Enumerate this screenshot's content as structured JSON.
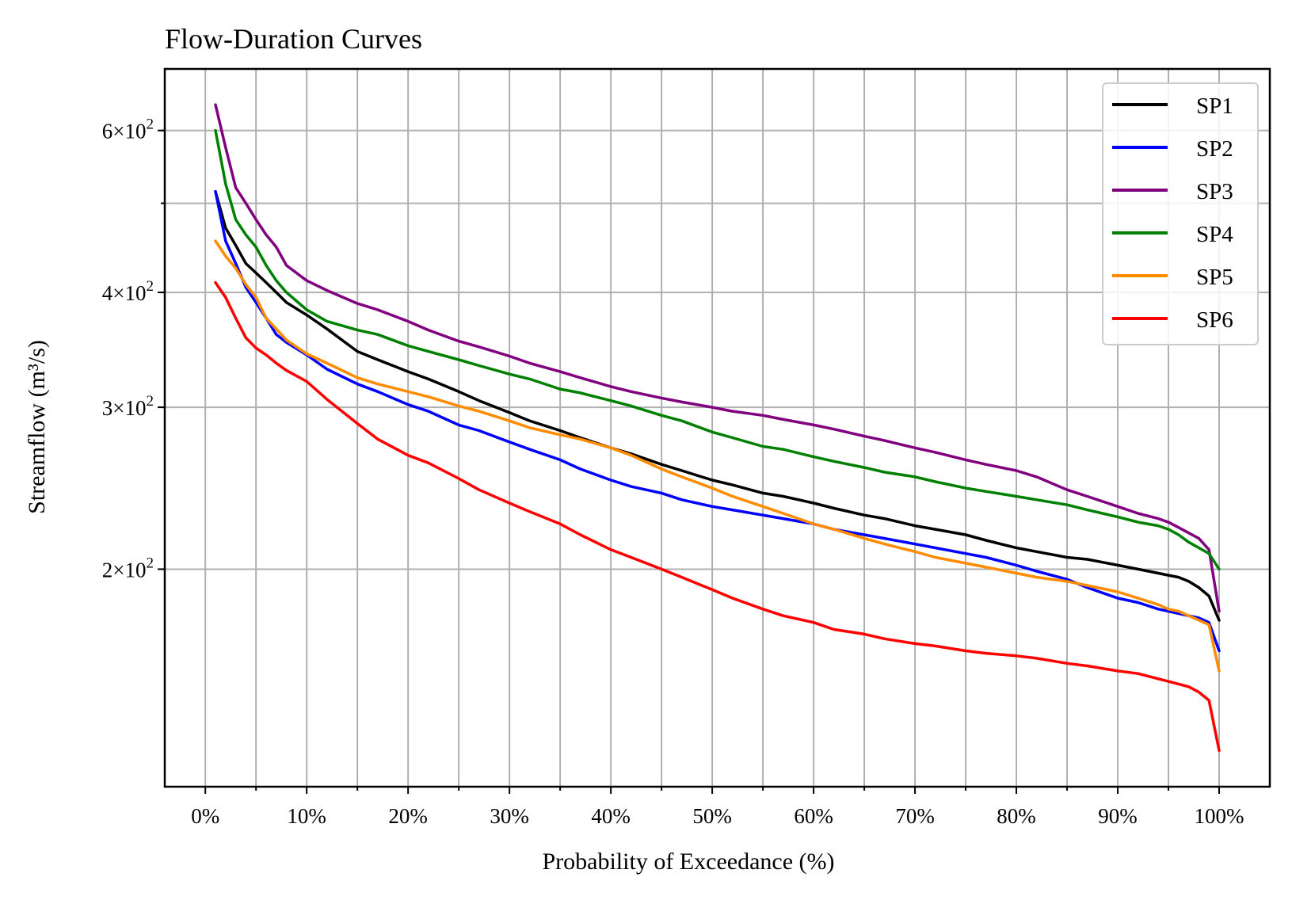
{
  "chart_data": {
    "type": "line",
    "title": "Flow-Duration Curves",
    "xlabel": "Probability of Exceedance (%)",
    "ylabel": "Streamflow (m³/s)",
    "x_tick_labels": [
      "0%",
      "10%",
      "20%",
      "30%",
      "40%",
      "50%",
      "60%",
      "70%",
      "80%",
      "90%",
      "100%"
    ],
    "y_tick_labels": [
      {
        "value": 200,
        "mantissa": "2",
        "base": "10",
        "exponent": "2"
      },
      {
        "value": 300,
        "mantissa": "3",
        "base": "10",
        "exponent": "2"
      },
      {
        "value": 400,
        "mantissa": "4",
        "base": "10",
        "exponent": "2"
      },
      {
        "value": 600,
        "mantissa": "6",
        "base": "10",
        "exponent": "2"
      }
    ],
    "y_scale": "log",
    "xlim": [
      -4,
      105
    ],
    "ylim": [
      116,
      700
    ],
    "grid": true,
    "legend_position": "top-right",
    "x": [
      1,
      2,
      3,
      4,
      5,
      6,
      7,
      8,
      10,
      12,
      15,
      17,
      20,
      22,
      25,
      27,
      30,
      32,
      35,
      37,
      40,
      42,
      45,
      47,
      50,
      52,
      55,
      57,
      60,
      62,
      65,
      67,
      70,
      72,
      75,
      77,
      80,
      82,
      85,
      87,
      90,
      92,
      94,
      95,
      96,
      97,
      98,
      99,
      100
    ],
    "series": [
      {
        "name": "SP1",
        "color": "#000000",
        "values": [
          515,
          470,
          450,
          430,
          420,
          410,
          400,
          390,
          378,
          365,
          345,
          338,
          328,
          322,
          312,
          305,
          296,
          290,
          283,
          278,
          271,
          267,
          260,
          256,
          250,
          247,
          242,
          240,
          236,
          233,
          229,
          227,
          223,
          221,
          218,
          215,
          211,
          209,
          206,
          205,
          202,
          200,
          198,
          197,
          196,
          194,
          191,
          187,
          176
        ]
      },
      {
        "name": "SP2",
        "color": "#0000ff",
        "values": [
          515,
          455,
          430,
          405,
          390,
          375,
          360,
          353,
          342,
          330,
          318,
          312,
          302,
          297,
          287,
          283,
          275,
          270,
          263,
          257,
          250,
          246,
          242,
          238,
          234,
          232,
          229,
          227,
          224,
          221,
          218,
          216,
          213,
          211,
          208,
          206,
          202,
          199,
          195,
          191,
          186,
          184,
          181,
          180,
          179,
          178,
          177,
          175,
          163
        ]
      },
      {
        "name": "SP3",
        "color": "#800080",
        "values": [
          640,
          575,
          520,
          500,
          480,
          462,
          448,
          428,
          412,
          402,
          389,
          383,
          372,
          364,
          354,
          349,
          341,
          335,
          328,
          323,
          316,
          312,
          307,
          304,
          300,
          297,
          294,
          291,
          287,
          284,
          279,
          276,
          271,
          268,
          263,
          260,
          256,
          252,
          244,
          240,
          234,
          230,
          227,
          225,
          222,
          219,
          216,
          210,
          180
        ]
      },
      {
        "name": "SP4",
        "color": "#008000",
        "values": [
          600,
          525,
          480,
          462,
          448,
          428,
          412,
          400,
          383,
          372,
          364,
          360,
          350,
          345,
          338,
          333,
          326,
          322,
          314,
          311,
          305,
          301,
          294,
          290,
          282,
          278,
          272,
          270,
          265,
          262,
          258,
          255,
          252,
          249,
          245,
          243,
          240,
          238,
          235,
          232,
          228,
          225,
          223,
          221,
          218,
          214,
          211,
          208,
          200
        ]
      },
      {
        "name": "SP5",
        "color": "#ff8c00",
        "values": [
          455,
          438,
          425,
          408,
          395,
          375,
          365,
          355,
          343,
          335,
          323,
          318,
          312,
          308,
          301,
          297,
          290,
          285,
          280,
          277,
          271,
          266,
          257,
          252,
          245,
          240,
          234,
          230,
          224,
          221,
          216,
          213,
          209,
          206,
          203,
          201,
          198,
          196,
          194,
          192,
          189,
          186,
          183,
          181,
          180,
          178,
          176,
          174,
          155
        ]
      },
      {
        "name": "SP6",
        "color": "#ff0000",
        "values": [
          410,
          395,
          375,
          357,
          348,
          342,
          335,
          329,
          320,
          306,
          288,
          277,
          266,
          261,
          251,
          244,
          236,
          231,
          224,
          218,
          210,
          206,
          200,
          196,
          190,
          186,
          181,
          178,
          175,
          172,
          170,
          168,
          166,
          165,
          163,
          162,
          161,
          160,
          158,
          157,
          155,
          154,
          152,
          151,
          150,
          149,
          147,
          144,
          127
        ]
      }
    ]
  }
}
